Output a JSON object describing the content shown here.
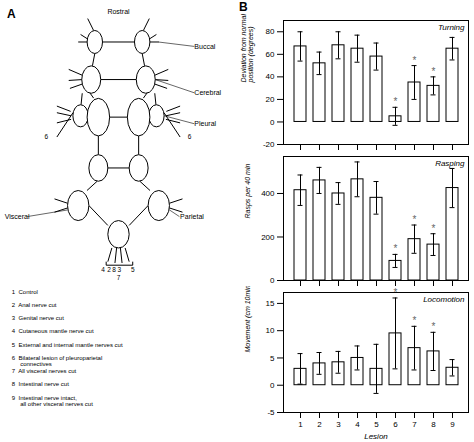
{
  "chart_data": [
    {
      "type": "bar",
      "title": "Turning",
      "ylabel": "Deviation from normal\nposition (degrees)",
      "categories": [
        "1",
        "2",
        "3",
        "4",
        "5",
        "6",
        "7",
        "8",
        "9"
      ],
      "values": [
        67,
        52,
        68,
        65,
        58,
        5,
        35,
        32,
        65
      ],
      "errors": [
        13,
        10,
        12,
        12,
        12,
        8,
        15,
        8,
        10
      ],
      "color": "white",
      "ylim": [
        -20,
        90
      ],
      "yticks": [
        -20,
        0,
        20,
        40,
        60,
        80
      ],
      "tick_labels": "y",
      "annotations": [
        {
          "category": "6",
          "text": "*",
          "color": "#666666"
        },
        {
          "category": "7",
          "text": "*",
          "color": "#666666"
        },
        {
          "category": "8",
          "text": "*",
          "color": "#666666"
        }
      ]
    },
    {
      "type": "bar",
      "title": "Rasping",
      "ylabel": "Rasps per 40 min",
      "categories": [
        "1",
        "2",
        "3",
        "4",
        "5",
        "6",
        "7",
        "8",
        "9"
      ],
      "values": [
        415,
        460,
        400,
        465,
        380,
        90,
        190,
        165,
        425
      ],
      "errors": [
        70,
        60,
        50,
        80,
        75,
        30,
        65,
        50,
        90
      ],
      "color": "white",
      "ylim": [
        0,
        570
      ],
      "yticks": [
        0,
        200,
        400
      ],
      "tick_labels": "y",
      "annotations": [
        {
          "category": "6",
          "text": "*",
          "color": "#666666"
        },
        {
          "category": "7",
          "text": "*",
          "color": "#666666"
        },
        {
          "category": "8",
          "text": "*",
          "color": "#666666"
        }
      ]
    },
    {
      "type": "bar",
      "title": "Locomotion",
      "ylabel": "Movement (cm 10min⁻¹)",
      "xlabel": "Lesion",
      "categories": [
        "1",
        "2",
        "3",
        "4",
        "5",
        "6",
        "7",
        "8",
        "9"
      ],
      "values": [
        3.0,
        4.0,
        4.2,
        5.0,
        3.0,
        9.5,
        6.8,
        6.2,
        3.2
      ],
      "errors": [
        2.8,
        2.0,
        2.0,
        2.2,
        4.5,
        6.5,
        4.0,
        3.5,
        1.5
      ],
      "color": "white",
      "ylim": [
        -5,
        17
      ],
      "yticks": [
        -5,
        0,
        5,
        10,
        15
      ],
      "annotations": [
        {
          "category": "6",
          "text": "*",
          "color": "#666666"
        },
        {
          "category": "7",
          "text": "*",
          "color": "#666666"
        },
        {
          "category": "8",
          "text": "*",
          "color": "#666666"
        }
      ]
    }
  ],
  "annotations": {
    "panel_labels": [
      "A",
      "B"
    ],
    "diagram_labels": [
      "Rostral",
      "Buccal",
      "Cerebral",
      "Pleural",
      "Visceral",
      "Parietal"
    ],
    "nerve_labels": [
      "4",
      "2",
      "8",
      "3",
      "5",
      "7",
      "6",
      "6"
    ],
    "key": [
      "1  Control",
      "2  Anal nerve cut",
      "3  Genital nerve cut",
      "4  Cutaneous mantle nerve cut",
      "5  External and internal mantle nerves cut",
      "6  Bilateral lesion of pleuroparietal\n     connectives",
      "7  All visceral nerves cut",
      "8  Intestinal nerve cut",
      "9  Intestinal nerve intact,\n     all other visceral nerves cut"
    ]
  }
}
